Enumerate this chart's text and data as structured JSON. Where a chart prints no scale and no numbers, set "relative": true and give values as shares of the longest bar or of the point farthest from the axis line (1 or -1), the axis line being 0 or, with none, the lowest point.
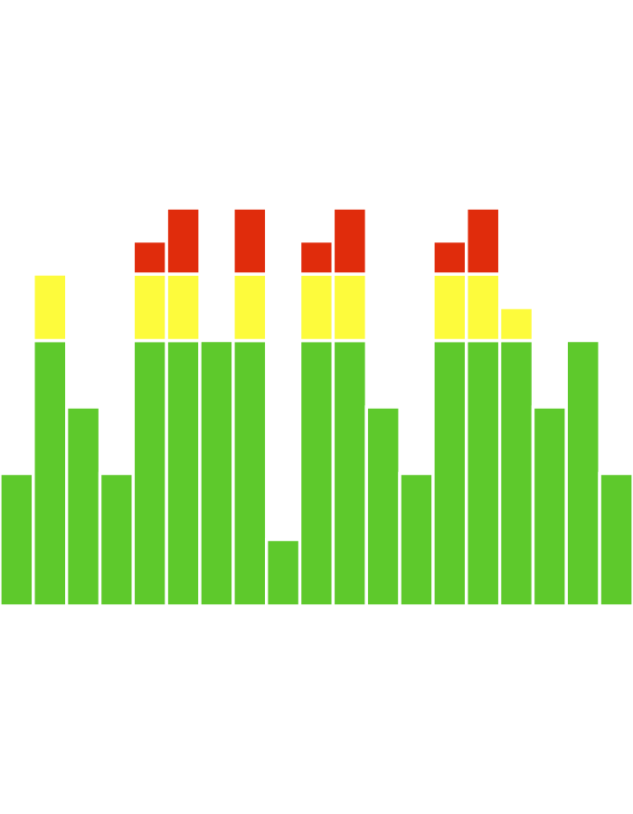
{
  "chart_data": {
    "type": "bar",
    "stacked": true,
    "relative": true,
    "categories": [
      null,
      null,
      null,
      null,
      null,
      null,
      null,
      null,
      null,
      null,
      null,
      null,
      null,
      null,
      null,
      null,
      null,
      null,
      null
    ],
    "series": [
      {
        "color": "#5ec92c",
        "values": [
          0.333,
          0.667,
          0.5,
          0.333,
          0.667,
          0.667,
          0.667,
          0.667,
          0.167,
          0.667,
          0.667,
          0.5,
          0.333,
          0.667,
          0.667,
          0.667,
          0.5,
          0.667,
          0.333
        ]
      },
      {
        "color": "#fdfb3c",
        "values": [
          null,
          0.167,
          null,
          null,
          0.167,
          0.167,
          null,
          0.167,
          null,
          0.167,
          0.167,
          null,
          null,
          0.167,
          0.167,
          0.083,
          null,
          null,
          null
        ]
      },
      {
        "color": "#e02c0c",
        "values": [
          null,
          null,
          null,
          null,
          0.083,
          0.166,
          null,
          0.166,
          null,
          0.083,
          0.166,
          null,
          null,
          0.083,
          0.166,
          null,
          null,
          null,
          null
        ]
      }
    ],
    "grid": false,
    "legend": false
  }
}
